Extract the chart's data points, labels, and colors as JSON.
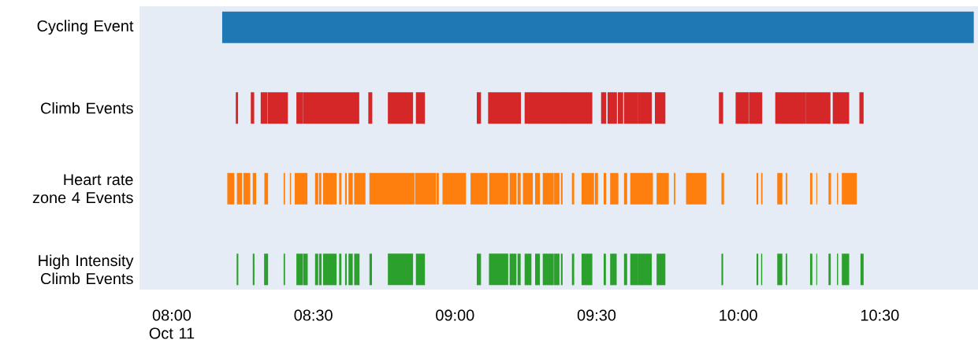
{
  "chart_data": {
    "type": "bar",
    "orientation": "horizontal",
    "categories": [
      "Cycling Event",
      "Climb Events",
      "Heart rate zone 4 Events",
      "High Intensity Climb Events"
    ],
    "series": [
      {
        "colors": [
          "#1f77b4",
          "#d62728",
          "#ff7f0e",
          "#2ca02c"
        ],
        "base": [
          8.178,
          8.226,
          8.196,
          8.229
        ],
        "values": [
          2.654,
          0.008,
          0.025,
          0.006
        ]
      },
      {
        "colors": [
          null,
          "#d62728",
          "#ff7f0e",
          "#2ca02c"
        ],
        "base": [
          null,
          8.279,
          8.23,
          8.286
        ],
        "values": [
          null,
          0.012,
          0.018,
          0.006
        ]
      },
      {
        "colors": [
          null,
          "#d62728",
          "#ff7f0e",
          "#2ca02c"
        ],
        "base": [
          null,
          8.314,
          8.253,
          8.326
        ],
        "values": [
          null,
          0.023,
          0.024,
          0.014
        ]
      },
      {
        "colors": [
          null,
          "#d62728",
          "#ff7f0e",
          "#2ca02c"
        ],
        "base": [
          null,
          8.338,
          8.286,
          8.395
        ],
        "values": [
          null,
          0.072,
          0.012,
          0.005
        ]
      },
      {
        "colors": [
          null,
          "#d62728",
          "#ff7f0e",
          "#2ca02c"
        ],
        "base": [
          null,
          8.44,
          8.327,
          8.44
        ],
        "values": [
          null,
          0.023,
          0.013,
          0.023
        ]
      },
      {
        "colors": [
          null,
          "#d62728",
          "#ff7f0e",
          "#2ca02c"
        ],
        "base": [
          null,
          8.463,
          8.395,
          8.464
        ],
        "values": [
          null,
          0.199,
          0.005,
          0.016
        ]
      },
      {
        "colors": [
          null,
          "#d62728",
          "#ff7f0e",
          "#2ca02c"
        ],
        "base": [
          null,
          8.694,
          8.417,
          8.506
        ],
        "values": [
          null,
          0.014,
          0.004,
          0.011
        ]
      },
      {
        "colors": [
          null,
          "#d62728",
          "#ff7f0e",
          "#2ca02c"
        ],
        "base": [
          null,
          8.763,
          8.434,
          8.52
        ],
        "values": [
          null,
          0.089,
          0.045,
          0.009
        ]
      },
      {
        "colors": [
          null,
          "#d62728",
          "#ff7f0e",
          "#2ca02c"
        ],
        "base": [
          null,
          8.862,
          8.506,
          8.534
        ],
        "values": [
          null,
          0.032,
          0.011,
          0.048
        ]
      },
      {
        "colors": [
          null,
          "#d62728",
          "#ff7f0e",
          "#2ca02c"
        ],
        "base": [
          null,
          9.077,
          8.52,
          8.591
        ],
        "values": [
          null,
          0.015,
          0.008,
          0.008
        ]
      },
      {
        "colors": [
          null,
          "#d62728",
          "#ff7f0e",
          "#2ca02c"
        ],
        "base": [
          null,
          9.117,
          8.534,
          8.612
        ],
        "values": [
          null,
          0.116,
          0.048,
          0.006
        ]
      },
      {
        "colors": [
          null,
          "#d62728",
          "#ff7f0e",
          "#2ca02c"
        ],
        "base": [
          null,
          9.246,
          8.591,
          8.624
        ],
        "values": [
          null,
          0.023,
          0.008,
          0.015
        ]
      },
      {
        "colors": [
          null,
          "#d62728",
          "#ff7f0e",
          "#2ca02c"
        ],
        "base": [
          null,
          9.269,
          8.612,
          8.644
        ],
        "values": [
          null,
          0.039,
          0.006,
          0.019
        ]
      },
      {
        "colors": [
          null,
          "#d62728",
          "#ff7f0e",
          "#2ca02c"
        ],
        "base": [
          null,
          9.308,
          8.624,
          8.698
        ],
        "values": [
          null,
          0.081,
          0.015,
          0.009
        ]
      },
      {
        "colors": [
          null,
          "#d62728",
          "#ff7f0e",
          "#2ca02c"
        ],
        "base": [
          null,
          9.388,
          8.644,
          8.763
        ],
        "values": [
          null,
          0.097,
          0.04,
          0.089
        ]
      },
      {
        "colors": [
          null,
          "#d62728",
          "#ff7f0e",
          "#2ca02c"
        ],
        "base": [
          null,
          9.516,
          8.698,
          8.862
        ],
        "values": [
          null,
          0.018,
          0.159,
          0.032
        ]
      },
      {
        "colors": [
          null,
          "#d62728",
          "#ff7f0e",
          "#2ca02c"
        ],
        "base": [
          null,
          9.539,
          8.859,
          9.077
        ],
        "values": [
          null,
          0.033,
          0.074,
          0.015
        ]
      },
      {
        "colors": [
          null,
          "#d62728",
          "#ff7f0e",
          "#2ca02c"
        ],
        "base": [
          null,
          9.575,
          8.935,
          9.12
        ],
        "values": [
          null,
          0.019,
          0.008,
          0.068
        ]
      },
      {
        "colors": [
          null,
          "#d62728",
          "#ff7f0e",
          "#2ca02c"
        ],
        "base": [
          null,
          9.597,
          8.956,
          9.193
        ],
        "values": [
          null,
          0.048,
          0.083,
          0.024
        ]
      },
      {
        "colors": [
          null,
          "#d62728",
          "#ff7f0e",
          "#2ca02c"
        ],
        "base": [
          null,
          9.645,
          9.055,
          9.221
        ],
        "values": [
          null,
          0.05,
          0.06,
          0.011
        ]
      },
      {
        "colors": [
          null,
          "#d62728",
          "#ff7f0e",
          "#2ca02c"
        ],
        "base": [
          null,
          9.706,
          9.121,
          9.246
        ],
        "values": [
          null,
          0.037,
          0.067,
          0.024
        ]
      },
      {
        "colors": [
          null,
          "#d62728",
          "#ff7f0e",
          "#2ca02c"
        ],
        "base": [
          null,
          9.932,
          9.193,
          9.283
        ],
        "values": [
          null,
          0.015,
          0.024,
          0.017
        ]
      },
      {
        "colors": [
          null,
          "#d62728",
          "#ff7f0e",
          "#2ca02c"
        ],
        "base": [
          null,
          9.991,
          9.221,
          9.31
        ],
        "values": [
          null,
          0.046,
          0.011,
          0.039
        ]
      },
      {
        "colors": [
          null,
          "#d62728",
          "#ff7f0e",
          "#2ca02c"
        ],
        "base": [
          null,
          10.038,
          9.24,
          9.35
        ],
        "values": [
          null,
          0.047,
          0.035,
          0.019
        ]
      },
      {
        "colors": [
          null,
          "#d62728",
          "#ff7f0e",
          "#2ca02c"
        ],
        "base": [
          null,
          10.131,
          9.283,
          9.374
        ],
        "values": [
          null,
          0.029,
          0.017,
          0.006
        ]
      },
      {
        "colors": [
          null,
          "#d62728",
          "#ff7f0e",
          "#2ca02c"
        ],
        "base": [
          null,
          10.159,
          9.31,
          9.413
        ],
        "values": [
          null,
          0.079,
          0.039,
          0.008
        ]
      },
      {
        "colors": [
          null,
          "#d62728",
          "#ff7f0e",
          "#2ca02c"
        ],
        "base": [
          null,
          10.238,
          9.35,
          9.447
        ],
        "values": [
          null,
          0.088,
          0.019,
          0.038
        ]
      },
      {
        "colors": [
          null,
          "#d62728",
          "#ff7f0e",
          "#2ca02c"
        ],
        "base": [
          null,
          10.334,
          9.374,
          9.525
        ],
        "values": [
          null,
          0.058,
          0.006,
          0.008
        ]
      },
      {
        "colors": [
          null,
          "#d62728",
          "#ff7f0e",
          "#2ca02c"
        ],
        "base": [
          null,
          10.428,
          9.413,
          9.548
        ],
        "values": [
          null,
          0.015,
          0.008,
          0.023
        ]
      },
      {
        "colors": [
          null,
          null,
          "#ff7f0e",
          "#2ca02c"
        ],
        "base": [
          null,
          null,
          9.447,
          9.597
        ],
        "values": [
          null,
          null,
          0.044,
          0.011
        ]
      },
      {
        "colors": [
          null,
          null,
          "#ff7f0e",
          "#2ca02c"
        ],
        "base": [
          null,
          null,
          9.494,
          9.619
        ],
        "values": [
          null,
          null,
          0.011,
          0.026
        ]
      },
      {
        "colors": [
          null,
          null,
          "#ff7f0e",
          "#2ca02c"
        ],
        "base": [
          null,
          null,
          9.525,
          9.645
        ],
        "values": [
          null,
          null,
          0.009,
          0.05
        ]
      },
      {
        "colors": [
          null,
          null,
          "#ff7f0e",
          "#2ca02c"
        ],
        "base": [
          null,
          null,
          9.548,
          9.712
        ],
        "values": [
          null,
          null,
          0.029,
          0.031
        ]
      },
      {
        "colors": [
          null,
          null,
          "#ff7f0e",
          "#2ca02c"
        ],
        "base": [
          null,
          null,
          9.597,
          9.941
        ],
        "values": [
          null,
          null,
          0.011,
          0.006
        ]
      },
      {
        "colors": [
          null,
          null,
          "#ff7f0e",
          "#2ca02c"
        ],
        "base": [
          null,
          null,
          9.619,
          10.065
        ],
        "values": [
          null,
          null,
          0.08,
          0.006
        ]
      },
      {
        "colors": [
          null,
          null,
          "#ff7f0e",
          "#2ca02c"
        ],
        "base": [
          null,
          null,
          9.712,
          10.081
        ],
        "values": [
          null,
          null,
          0.043,
          0.004
        ]
      },
      {
        "colors": [
          null,
          null,
          "#ff7f0e",
          "#2ca02c"
        ],
        "base": [
          null,
          null,
          9.773,
          10.138
        ],
        "values": [
          null,
          null,
          0.005,
          0.018
        ]
      },
      {
        "colors": [
          null,
          null,
          "#ff7f0e",
          "#2ca02c"
        ],
        "base": [
          null,
          null,
          9.816,
          10.168
        ],
        "values": [
          null,
          null,
          0.072,
          0.005
        ]
      },
      {
        "colors": [
          null,
          null,
          "#ff7f0e",
          "#2ca02c"
        ],
        "base": [
          null,
          null,
          9.941,
          10.254
        ],
        "values": [
          null,
          null,
          0.009,
          0.008
        ]
      },
      {
        "colors": [
          null,
          null,
          "#ff7f0e",
          "#2ca02c"
        ],
        "base": [
          null,
          null,
          10.065,
          10.276
        ],
        "values": [
          null,
          null,
          0.006,
          0.003
        ]
      },
      {
        "colors": [
          null,
          null,
          "#ff7f0e",
          "#2ca02c"
        ],
        "base": [
          null,
          null,
          10.081,
          10.319
        ],
        "values": [
          null,
          null,
          0.005,
          0.008
        ]
      },
      {
        "colors": [
          null,
          null,
          "#ff7f0e",
          "#2ca02c"
        ],
        "base": [
          null,
          null,
          10.138,
          10.349
        ],
        "values": [
          null,
          null,
          0.018,
          0.004
        ]
      },
      {
        "colors": [
          null,
          null,
          "#ff7f0e",
          "#2ca02c"
        ],
        "base": [
          null,
          null,
          10.168,
          10.366
        ],
        "values": [
          null,
          null,
          0.005,
          0.026
        ]
      },
      {
        "colors": [
          null,
          null,
          "#ff7f0e",
          "#2ca02c"
        ],
        "base": [
          null,
          null,
          10.254,
          10.432
        ],
        "values": [
          null,
          null,
          0.008,
          0.011
        ]
      },
      {
        "colors": [
          null,
          null,
          "#ff7f0e",
          null
        ],
        "base": [
          null,
          null,
          10.276,
          null
        ],
        "values": [
          null,
          null,
          0.003,
          null
        ]
      },
      {
        "colors": [
          null,
          null,
          "#ff7f0e",
          null
        ],
        "base": [
          null,
          null,
          10.319,
          null
        ],
        "values": [
          null,
          null,
          0.009,
          null
        ]
      },
      {
        "colors": [
          null,
          null,
          "#ff7f0e",
          null
        ],
        "base": [
          null,
          null,
          10.349,
          null
        ],
        "values": [
          null,
          null,
          0.004,
          null
        ]
      },
      {
        "colors": [
          null,
          null,
          "#ff7f0e",
          null
        ],
        "base": [
          null,
          null,
          10.366,
          null
        ],
        "values": [
          null,
          null,
          0.053,
          null
        ]
      }
    ],
    "xlim": [
      7.886,
      10.847
    ],
    "xticks": [
      {
        "value": 8,
        "label": "08:00 Oct 11"
      },
      {
        "value": 8.5,
        "label": "08:30"
      },
      {
        "value": 9,
        "label": "09:00"
      },
      {
        "value": 9.5,
        "label": "09:30"
      },
      {
        "value": 10,
        "label": "10:00"
      },
      {
        "value": 10.5,
        "label": "10:30"
      }
    ]
  }
}
